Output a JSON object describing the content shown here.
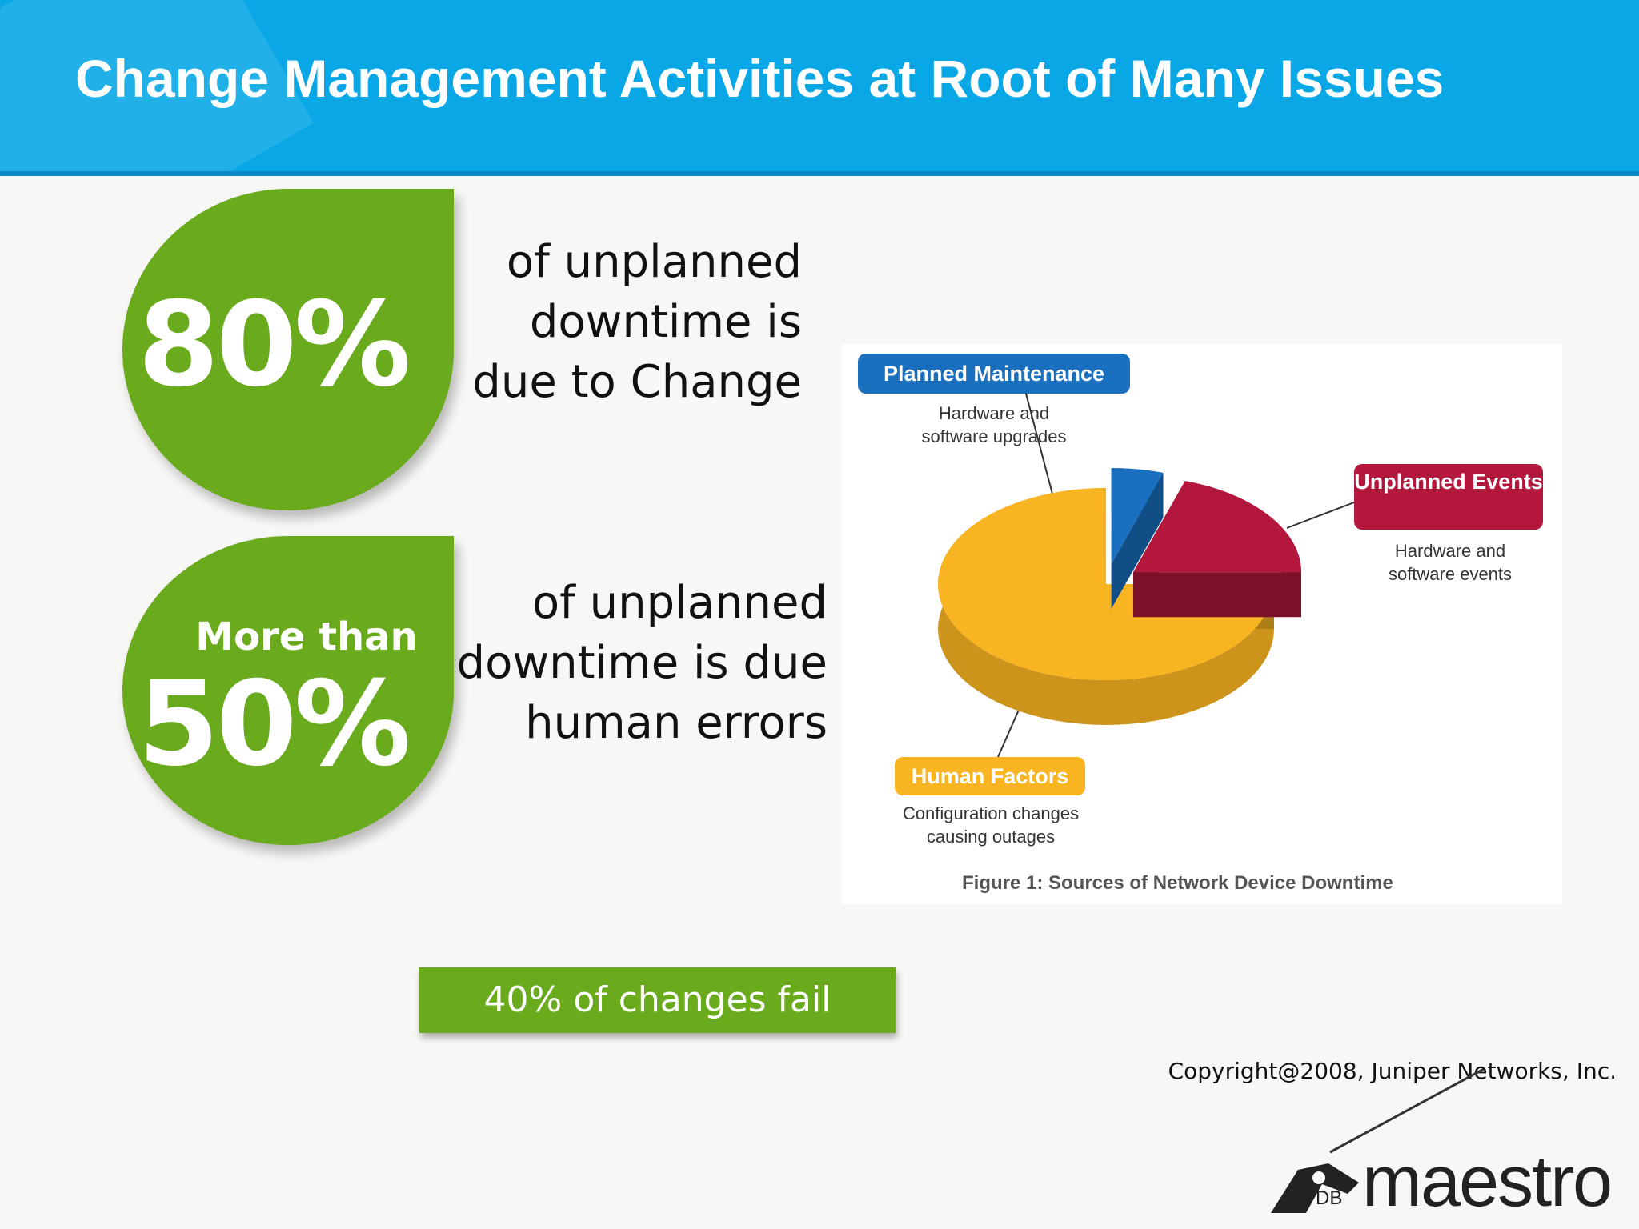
{
  "header": {
    "title": "Change Management Activities at Root of Many Issues"
  },
  "stats": [
    {
      "big": "80%",
      "small": "",
      "text": "of unplanned\ndowntime is\ndue to Change"
    },
    {
      "big": "50%",
      "small": "More than",
      "text": "of unplanned\ndowntime is due\nhuman errors"
    }
  ],
  "callout": "40% of changes fail",
  "figure": {
    "caption": "Figure 1: Sources of Network Device Downtime",
    "planned": {
      "label": "Planned Maintenance",
      "desc": "Hardware and\nsoftware upgrades"
    },
    "unplanned": {
      "label": "Unplanned Events",
      "desc": "Hardware and\nsoftware events"
    },
    "human": {
      "label": "Human Factors",
      "desc": "Configuration changes\ncausing outages"
    }
  },
  "chart_data": {
    "type": "pie",
    "title": "Figure 1: Sources of Network Device Downtime",
    "slices": [
      {
        "label": "Planned Maintenance",
        "value": 5,
        "color": "#1a6fbf"
      },
      {
        "label": "Unplanned Events",
        "value": 20,
        "color": "#b3173c"
      },
      {
        "label": "Human Factors",
        "value": 75,
        "color": "#f9b521"
      }
    ]
  },
  "copyright": "Copyright@2008, Juniper Networks, Inc.",
  "logo": {
    "word": "maestro",
    "prefix": "DB"
  }
}
